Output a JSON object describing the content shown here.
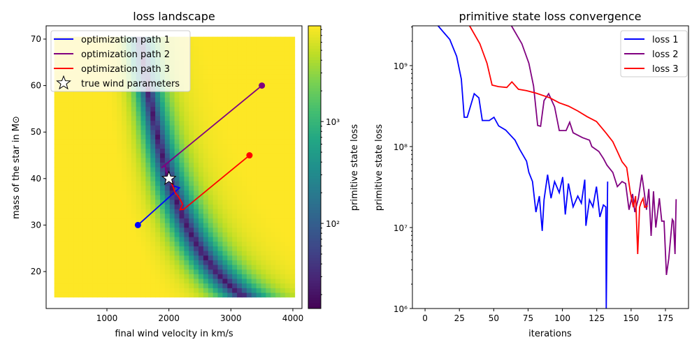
{
  "chart_data": [
    {
      "type": "heatmap",
      "title": "loss landscape",
      "xlabel": "final wind velocity in km/s",
      "ylabel": "mass of the star in M⊙",
      "xlim": [
        19,
        4147
      ],
      "ylim": [
        12.05,
        72.85
      ],
      "image_extent": {
        "x": [
          150,
          4030
        ],
        "y": [
          14.5,
          70.5
        ]
      },
      "xticks": [
        1000,
        2000,
        3000,
        4000
      ],
      "xtick_labels": [
        "1000",
        "2000",
        "3000",
        "4000"
      ],
      "yticks": [
        20,
        30,
        40,
        50,
        60,
        70
      ],
      "ytick_labels": [
        "20",
        "30",
        "40",
        "50",
        "60",
        "70"
      ],
      "colormap": "viridis",
      "colorbar": {
        "label": "primitive state loss",
        "scale": "log",
        "range": [
          14.6,
          8700
        ],
        "ticks": [
          100,
          1000
        ],
        "tick_labels": [
          "10²",
          "10³"
        ]
      },
      "legend": {
        "placement": "upper-left",
        "entries": [
          {
            "name": "optimization path 1",
            "color": "#0000ff",
            "marker": "line"
          },
          {
            "name": "optimization path 2",
            "color": "#800080",
            "marker": "line"
          },
          {
            "name": "optimization path 3",
            "color": "#ff0000",
            "marker": "line"
          },
          {
            "name": "true wind parameters",
            "color": "#ffffff",
            "marker": "star"
          }
        ]
      },
      "paths": [
        {
          "name": "optimization path 1",
          "color": "#0000ff",
          "points": [
            [
              1500,
              30
            ],
            [
              2170,
              38
            ],
            [
              2060,
              38.5
            ],
            [
              2040,
              39.5
            ]
          ]
        },
        {
          "name": "optimization path 2",
          "color": "#800080",
          "points": [
            [
              3500,
              60
            ],
            [
              1880,
              42.3
            ],
            [
              1940,
              42.8
            ],
            [
              1960,
              41.5
            ],
            [
              1990,
              40.8
            ]
          ]
        },
        {
          "name": "optimization path 3",
          "color": "#ff0000",
          "points": [
            [
              3300,
              45
            ],
            [
              2240,
              33.4
            ],
            [
              2180,
              33.3
            ],
            [
              2220,
              34.5
            ],
            [
              2160,
              36
            ],
            [
              2100,
              37
            ],
            [
              2060,
              38.5
            ],
            [
              2020,
              39.6
            ]
          ]
        }
      ],
      "true_point": [
        2000,
        40
      ]
    },
    {
      "type": "line",
      "title": "primitive state loss convergence",
      "xlabel": "iterations",
      "ylabel": "primitive state loss",
      "yscale": "log",
      "xlim": [
        -9.2,
        191.8
      ],
      "ylim": [
        1000000,
        3100000000
      ],
      "xticks": [
        0,
        25,
        50,
        75,
        100,
        125,
        150,
        175
      ],
      "xtick_labels": [
        "0",
        "25",
        "50",
        "75",
        "100",
        "125",
        "150",
        "175"
      ],
      "yticks": [
        1000000,
        10000000,
        100000000,
        1000000000
      ],
      "ytick_labels": [
        "10⁶",
        "10⁷",
        "10⁸",
        "10⁹"
      ],
      "legend": {
        "placement": "upper-right"
      },
      "series": [
        {
          "name": "loss 1",
          "color": "#0000ff",
          "points": [
            [
              9.5,
              3100000000.0
            ],
            [
              18,
              2100000000.0
            ],
            [
              23,
              1300000000.0
            ],
            [
              26.4,
              680000000.0
            ],
            [
              28.5,
              230000000.0
            ],
            [
              30.7,
              230000000.0
            ],
            [
              35.8,
              450000000.0
            ],
            [
              39.2,
              400000000.0
            ],
            [
              41.7,
              210000000.0
            ],
            [
              46.8,
              210000000.0
            ],
            [
              50.2,
              230000000.0
            ],
            [
              53.6,
              180000000.0
            ],
            [
              58.7,
              160000000.0
            ],
            [
              65.5,
              120000000.0
            ],
            [
              68.8,
              93000000.0
            ],
            [
              73.9,
              66000000.0
            ],
            [
              75.6,
              48000000.0
            ],
            [
              78.2,
              37000000.0
            ],
            [
              80.7,
              15500000.0
            ],
            [
              83.2,
              24500000.0
            ],
            [
              85.3,
              9100000.0
            ],
            [
              86.6,
              22000000.0
            ],
            [
              89.2,
              45000000.0
            ],
            [
              91.7,
              23000000.0
            ],
            [
              94.3,
              37000000.0
            ],
            [
              97.7,
              27000000.0
            ],
            [
              100.2,
              42000000.0
            ],
            [
              102.1,
              14500000.0
            ],
            [
              104.4,
              35000000.0
            ],
            [
              107.8,
              18000000.0
            ],
            [
              111.2,
              24500000.0
            ],
            [
              113.8,
              20000000.0
            ],
            [
              116.3,
              39000000.0
            ],
            [
              117.1,
              10500000.0
            ],
            [
              119.7,
              22000000.0
            ],
            [
              122.2,
              18000000.0
            ],
            [
              124.8,
              32000000.0
            ],
            [
              127.3,
              13500000.0
            ],
            [
              129.8,
              19000000.0
            ],
            [
              131.6,
              18000000.0
            ],
            [
              131.9,
              100000.0
            ],
            [
              132.9,
              37000000.0
            ]
          ]
        },
        {
          "name": "loss 2",
          "color": "#800080",
          "points": [
            [
              62.9,
              3100000000.0
            ],
            [
              70.5,
              1860000000.0
            ],
            [
              75.6,
              1070000000.0
            ],
            [
              79,
              560000000.0
            ],
            [
              82,
              182000000.0
            ],
            [
              84.1,
              178000000.0
            ],
            [
              86.6,
              370000000.0
            ],
            [
              90,
              450000000.0
            ],
            [
              94.3,
              310000000.0
            ],
            [
              97.7,
              158000000.0
            ],
            [
              102.7,
              158000000.0
            ],
            [
              105.3,
              200000000.0
            ],
            [
              107.8,
              148000000.0
            ],
            [
              114.6,
              129000000.0
            ],
            [
              119.7,
              120000000.0
            ],
            [
              121.4,
              100000000.0
            ],
            [
              126.5,
              87000000.0
            ],
            [
              129.9,
              71000000.0
            ],
            [
              132.4,
              59000000.0
            ],
            [
              136.7,
              48000000.0
            ],
            [
              140,
              32000000.0
            ],
            [
              143.4,
              37000000.0
            ],
            [
              146,
              35000000.0
            ],
            [
              148.5,
              16600000.0
            ],
            [
              151.1,
              26000000.0
            ],
            [
              152.7,
              15500000.0
            ],
            [
              155.3,
              23000000.0
            ],
            [
              157.8,
              45000000.0
            ],
            [
              159.5,
              28000000.0
            ],
            [
              161.2,
              16600000.0
            ],
            [
              162.9,
              30000000.0
            ],
            [
              164.6,
              7900000.0
            ],
            [
              166.3,
              28000000.0
            ],
            [
              168,
              10000000.0
            ],
            [
              170.6,
              23000000.0
            ],
            [
              172.3,
              12000000.0
            ],
            [
              174,
              12000000.0
            ],
            [
              175.7,
              2600000.0
            ],
            [
              177.4,
              4100000.0
            ],
            [
              180,
              12600000.0
            ],
            [
              180.8,
              12000000.0
            ],
            [
              182,
              4700000.0
            ],
            [
              182.8,
              22400000.0
            ]
          ]
        },
        {
          "name": "loss 3",
          "color": "#ff0000",
          "points": [
            [
              32.4,
              3100000000.0
            ],
            [
              39.9,
              1860000000.0
            ],
            [
              45.1,
              1070000000.0
            ],
            [
              48.8,
              575000000.0
            ],
            [
              53.5,
              550000000.0
            ],
            [
              59.5,
              537000000.0
            ],
            [
              63.2,
              630000000.0
            ],
            [
              68,
              510000000.0
            ],
            [
              73.9,
              490000000.0
            ],
            [
              80.7,
              457000000.0
            ],
            [
              90.9,
              400000000.0
            ],
            [
              97.7,
              347000000.0
            ],
            [
              104.4,
              316000000.0
            ],
            [
              111.2,
              275000000.0
            ],
            [
              118,
              234000000.0
            ],
            [
              124.8,
              204000000.0
            ],
            [
              131.6,
              148000000.0
            ],
            [
              136.7,
              115000000.0
            ],
            [
              140,
              87000000.0
            ],
            [
              143.4,
              65000000.0
            ],
            [
              146.8,
              55000000.0
            ],
            [
              149.3,
              28000000.0
            ],
            [
              151.6,
              17800000.0
            ],
            [
              153.3,
              24500000.0
            ],
            [
              154.8,
              4700000.0
            ],
            [
              156.2,
              17800000.0
            ],
            [
              157.3,
              20400000.0
            ],
            [
              158.7,
              22900000.0
            ],
            [
              159.9,
              17800000.0
            ],
            [
              162.1,
              18600000.0
            ]
          ]
        }
      ]
    }
  ]
}
